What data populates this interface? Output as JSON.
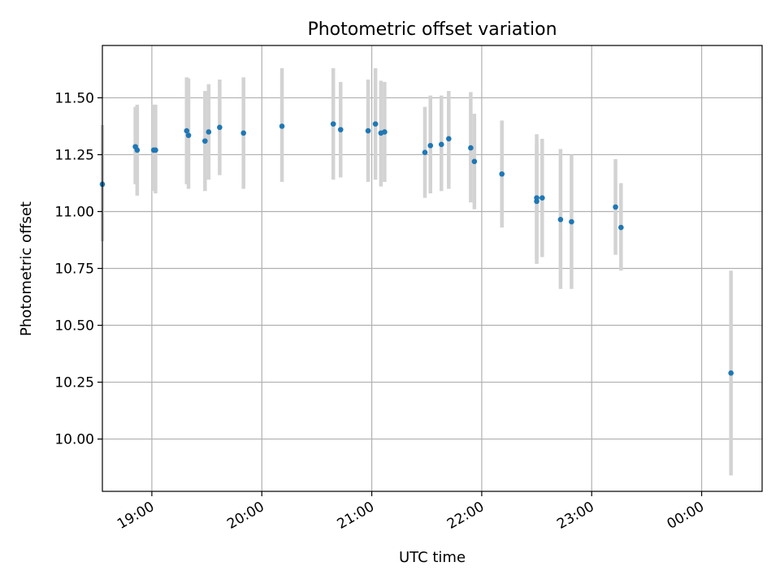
{
  "chart_data": {
    "type": "scatter",
    "title": "Photometric offset variation",
    "xlabel": "UTC time",
    "ylabel": "Photometric offset",
    "x_ticks": [
      "19:00",
      "20:00",
      "21:00",
      "22:00",
      "23:00",
      "00:00"
    ],
    "y_ticks": [
      "10.00",
      "10.25",
      "10.50",
      "10.75",
      "11.00",
      "11.25",
      "11.50"
    ],
    "xlim": [
      "18:33",
      "00:33"
    ],
    "ylim": [
      9.77,
      11.73
    ],
    "grid": true,
    "colors": {
      "points": "#1f77b4",
      "errorbars": "#d3d3d3",
      "grid": "#b0b0b0"
    },
    "points": [
      {
        "x": "18:33",
        "y": 11.12,
        "low": 10.87,
        "high": 11.38
      },
      {
        "x": "18:51",
        "y": 11.285,
        "low": 11.12,
        "high": 11.46
      },
      {
        "x": "18:52",
        "y": 11.27,
        "low": 11.07,
        "high": 11.47
      },
      {
        "x": "19:01",
        "y": 11.27,
        "low": 11.09,
        "high": 11.47
      },
      {
        "x": "19:02",
        "y": 11.27,
        "low": 11.08,
        "high": 11.47
      },
      {
        "x": "19:19",
        "y": 11.355,
        "low": 11.12,
        "high": 11.59
      },
      {
        "x": "19:20",
        "y": 11.335,
        "low": 11.1,
        "high": 11.585
      },
      {
        "x": "19:29",
        "y": 11.31,
        "low": 11.09,
        "high": 11.53
      },
      {
        "x": "19:31",
        "y": 11.35,
        "low": 11.14,
        "high": 11.56
      },
      {
        "x": "19:37",
        "y": 11.37,
        "low": 11.16,
        "high": 11.58
      },
      {
        "x": "19:50",
        "y": 11.345,
        "low": 11.1,
        "high": 11.59
      },
      {
        "x": "20:11",
        "y": 11.375,
        "low": 11.13,
        "high": 11.63
      },
      {
        "x": "20:39",
        "y": 11.385,
        "low": 11.14,
        "high": 11.63
      },
      {
        "x": "20:43",
        "y": 11.36,
        "low": 11.15,
        "high": 11.57
      },
      {
        "x": "20:58",
        "y": 11.355,
        "low": 11.13,
        "high": 11.58
      },
      {
        "x": "21:02",
        "y": 11.385,
        "low": 11.14,
        "high": 11.63
      },
      {
        "x": "21:05",
        "y": 11.345,
        "low": 11.11,
        "high": 11.575
      },
      {
        "x": "21:07",
        "y": 11.35,
        "low": 11.13,
        "high": 11.57
      },
      {
        "x": "21:29",
        "y": 11.26,
        "low": 11.06,
        "high": 11.46
      },
      {
        "x": "21:32",
        "y": 11.29,
        "low": 11.08,
        "high": 11.51
      },
      {
        "x": "21:38",
        "y": 11.295,
        "low": 11.09,
        "high": 11.51
      },
      {
        "x": "21:42",
        "y": 11.32,
        "low": 11.1,
        "high": 11.53
      },
      {
        "x": "21:54",
        "y": 11.28,
        "low": 11.04,
        "high": 11.525
      },
      {
        "x": "21:56",
        "y": 11.22,
        "low": 11.01,
        "high": 11.43
      },
      {
        "x": "22:11",
        "y": 11.165,
        "low": 10.93,
        "high": 11.4
      },
      {
        "x": "22:30",
        "y": 11.06,
        "low": 10.77,
        "high": 11.34
      },
      {
        "x": "22:30",
        "y": 11.045,
        "low": 10.79,
        "high": 11.3
      },
      {
        "x": "22:33",
        "y": 11.06,
        "low": 10.8,
        "high": 11.32
      },
      {
        "x": "22:43",
        "y": 10.965,
        "low": 10.66,
        "high": 11.275
      },
      {
        "x": "22:49",
        "y": 10.955,
        "low": 10.66,
        "high": 11.25
      },
      {
        "x": "23:13",
        "y": 11.02,
        "low": 10.81,
        "high": 11.23
      },
      {
        "x": "23:16",
        "y": 10.93,
        "low": 10.74,
        "high": 11.125
      },
      {
        "x": "00:16",
        "y": 10.29,
        "low": 9.84,
        "high": 10.74
      }
    ]
  }
}
